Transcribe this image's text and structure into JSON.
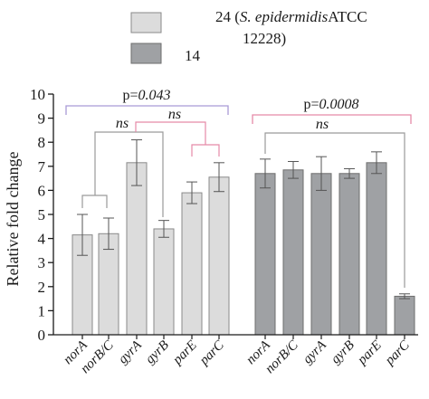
{
  "chart_data": {
    "type": "bar",
    "ylabel": "Relative fold change",
    "ylim": [
      0,
      10
    ],
    "yticks": [
      "0",
      "1",
      "2",
      "3",
      "4",
      "5",
      "6",
      "7",
      "8",
      "9",
      "10"
    ],
    "categories": [
      "norA",
      "norB/C",
      "gyrA",
      "gyrB",
      "parE",
      "parC"
    ],
    "series": [
      {
        "name": "24",
        "legend_label_line1_prefix": "24 (",
        "legend_label_line1_italic": "S. epidermidis",
        "legend_label_line1_suffix": "ATCC",
        "legend_label_line2": "12228)",
        "color": "#dcdcdc",
        "values": [
          4.15,
          4.2,
          7.15,
          4.4,
          5.9,
          6.55
        ],
        "error": [
          0.85,
          0.65,
          0.95,
          0.35,
          0.45,
          0.6
        ]
      },
      {
        "name": "14",
        "legend_label_line1_prefix": "14",
        "color": "#9fa1a4",
        "values": [
          6.7,
          6.85,
          6.7,
          6.7,
          7.15,
          1.6
        ],
        "error": [
          0.6,
          0.35,
          0.7,
          0.2,
          0.45,
          0.1
        ]
      }
    ],
    "annotations": {
      "left_p_prefix": "p=",
      "left_p_value": "0.043",
      "right_p_prefix": "p=",
      "right_p_value": "0.0008",
      "ns": "ns"
    },
    "colors": {
      "purple_bracket": "#a99ad6",
      "pink_bracket": "#e58aa8",
      "gray_bracket": "#9a9a9a"
    }
  }
}
